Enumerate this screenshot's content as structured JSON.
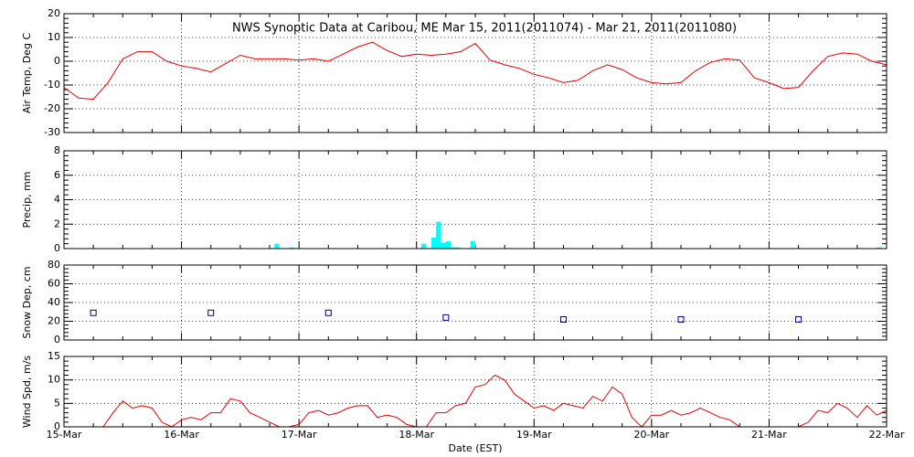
{
  "chart_data": [
    {
      "type": "line",
      "title": "NWS Synoptic Data at Caribou, ME   Mar 15, 2011(2011074) - Mar 21, 2011(2011080)",
      "ylabel": "Air Temp, Deg C",
      "color": "#e00000",
      "grid": true,
      "xlim": [
        0,
        168
      ],
      "xticks": [
        0,
        24,
        48,
        72,
        96,
        120,
        144,
        168
      ],
      "ylim": [
        -30,
        20
      ],
      "yticks": [
        -30,
        -20,
        -10,
        0,
        10,
        20
      ],
      "x": [
        0,
        3,
        6,
        9,
        12,
        15,
        18,
        21,
        24,
        27,
        30,
        33,
        36,
        39,
        42,
        45,
        48,
        51,
        54,
        57,
        60,
        63,
        66,
        69,
        72,
        75,
        78,
        81,
        84,
        87,
        90,
        93,
        96,
        99,
        102,
        105,
        108,
        111,
        114,
        117,
        120,
        123,
        126,
        129,
        132,
        135,
        138,
        141,
        144,
        147,
        150,
        153,
        156,
        159,
        162,
        165,
        168
      ],
      "values": [
        -11,
        -15.5,
        -16,
        -9,
        1,
        4,
        4,
        0,
        -2,
        -3,
        -4.5,
        -1,
        2.5,
        1,
        1,
        1,
        0.5,
        1,
        0,
        3,
        6,
        8,
        4.5,
        2,
        3,
        2.5,
        3,
        4,
        7.5,
        0.5,
        -1.5,
        -3,
        -5.5,
        -7,
        -9,
        -8,
        -4,
        -1.5,
        -3.5,
        -7,
        -9,
        -9.5,
        -9,
        -4,
        -0.5,
        1,
        0.5,
        -7,
        -9,
        -11.5,
        -11,
        -4,
        2,
        3.5,
        3,
        0,
        -1.5
      ]
    },
    {
      "type": "bar",
      "ylabel": "Precip, mm",
      "color": "#00ffff",
      "grid": true,
      "xlim": [
        0,
        168
      ],
      "xticks": [
        0,
        24,
        48,
        72,
        96,
        120,
        144,
        168
      ],
      "ylim": [
        0,
        8
      ],
      "yticks": [
        0,
        2,
        4,
        6,
        8
      ],
      "x": [
        43,
        46,
        73,
        75,
        76,
        77,
        78,
        79,
        80,
        83,
        166
      ],
      "values": [
        0.4,
        0.1,
        0.4,
        0.9,
        2.2,
        0.5,
        0.6,
        0.1,
        0.1,
        0.6,
        0.1
      ]
    },
    {
      "type": "scatter",
      "ylabel": "Snow Dep, cm",
      "color": "#000080",
      "grid": true,
      "xlim": [
        0,
        168
      ],
      "xticks": [
        0,
        24,
        48,
        72,
        96,
        120,
        144,
        168
      ],
      "ylim": [
        0,
        80
      ],
      "yticks": [
        0,
        20,
        40,
        60,
        80
      ],
      "x": [
        6,
        30,
        54,
        78,
        102,
        126,
        150
      ],
      "values": [
        29,
        29,
        29,
        24,
        22,
        22,
        22
      ]
    },
    {
      "type": "line",
      "ylabel": "Wind Spd, m/s",
      "xlabel": "Date (EST)",
      "color": "#e00000",
      "grid": true,
      "xlim": [
        0,
        168
      ],
      "xticks": [
        {
          "value": 0,
          "label": "15-Mar"
        },
        {
          "value": 24,
          "label": "16-Mar"
        },
        {
          "value": 48,
          "label": "17-Mar"
        },
        {
          "value": 72,
          "label": "18-Mar"
        },
        {
          "value": 96,
          "label": "19-Mar"
        },
        {
          "value": 120,
          "label": "20-Mar"
        },
        {
          "value": 144,
          "label": "21-Mar"
        },
        {
          "value": 168,
          "label": "22-Mar"
        }
      ],
      "ylim": [
        0,
        15
      ],
      "yticks": [
        0,
        5,
        10,
        15
      ],
      "x": [
        0,
        2,
        4,
        6,
        8,
        10,
        12,
        14,
        16,
        18,
        20,
        22,
        24,
        26,
        28,
        30,
        32,
        34,
        36,
        38,
        40,
        42,
        44,
        46,
        48,
        50,
        52,
        54,
        56,
        58,
        60,
        62,
        64,
        66,
        68,
        70,
        72,
        74,
        76,
        78,
        80,
        82,
        84,
        86,
        88,
        90,
        92,
        94,
        96,
        98,
        100,
        102,
        104,
        106,
        108,
        110,
        112,
        114,
        116,
        118,
        120,
        122,
        124,
        126,
        128,
        130,
        132,
        134,
        136,
        138,
        140,
        142,
        144,
        146,
        148,
        150,
        152,
        154,
        156,
        158,
        160,
        162,
        164,
        166,
        168
      ],
      "values": [
        0,
        0,
        0,
        0,
        0,
        3,
        5.5,
        4,
        4.5,
        4,
        1,
        0,
        1.5,
        2,
        1.5,
        3,
        3,
        6,
        5.5,
        3,
        2,
        1,
        0,
        0,
        0.5,
        3,
        3.5,
        2.5,
        3,
        4,
        4.5,
        4.5,
        2,
        2.5,
        2,
        0.5,
        0,
        0,
        3,
        3,
        4.5,
        5,
        8.5,
        9,
        11,
        10,
        7,
        5.5,
        4,
        4.5,
        3.5,
        5,
        4.5,
        4,
        6.5,
        5.5,
        8.5,
        7,
        2,
        0,
        2.5,
        2.5,
        3.5,
        2.5,
        3,
        4,
        3,
        2,
        1.5,
        0,
        0,
        0,
        0,
        0,
        0,
        0,
        1,
        3.5,
        3,
        5,
        4,
        2,
        4.5,
        2.5,
        3.5
      ]
    }
  ]
}
